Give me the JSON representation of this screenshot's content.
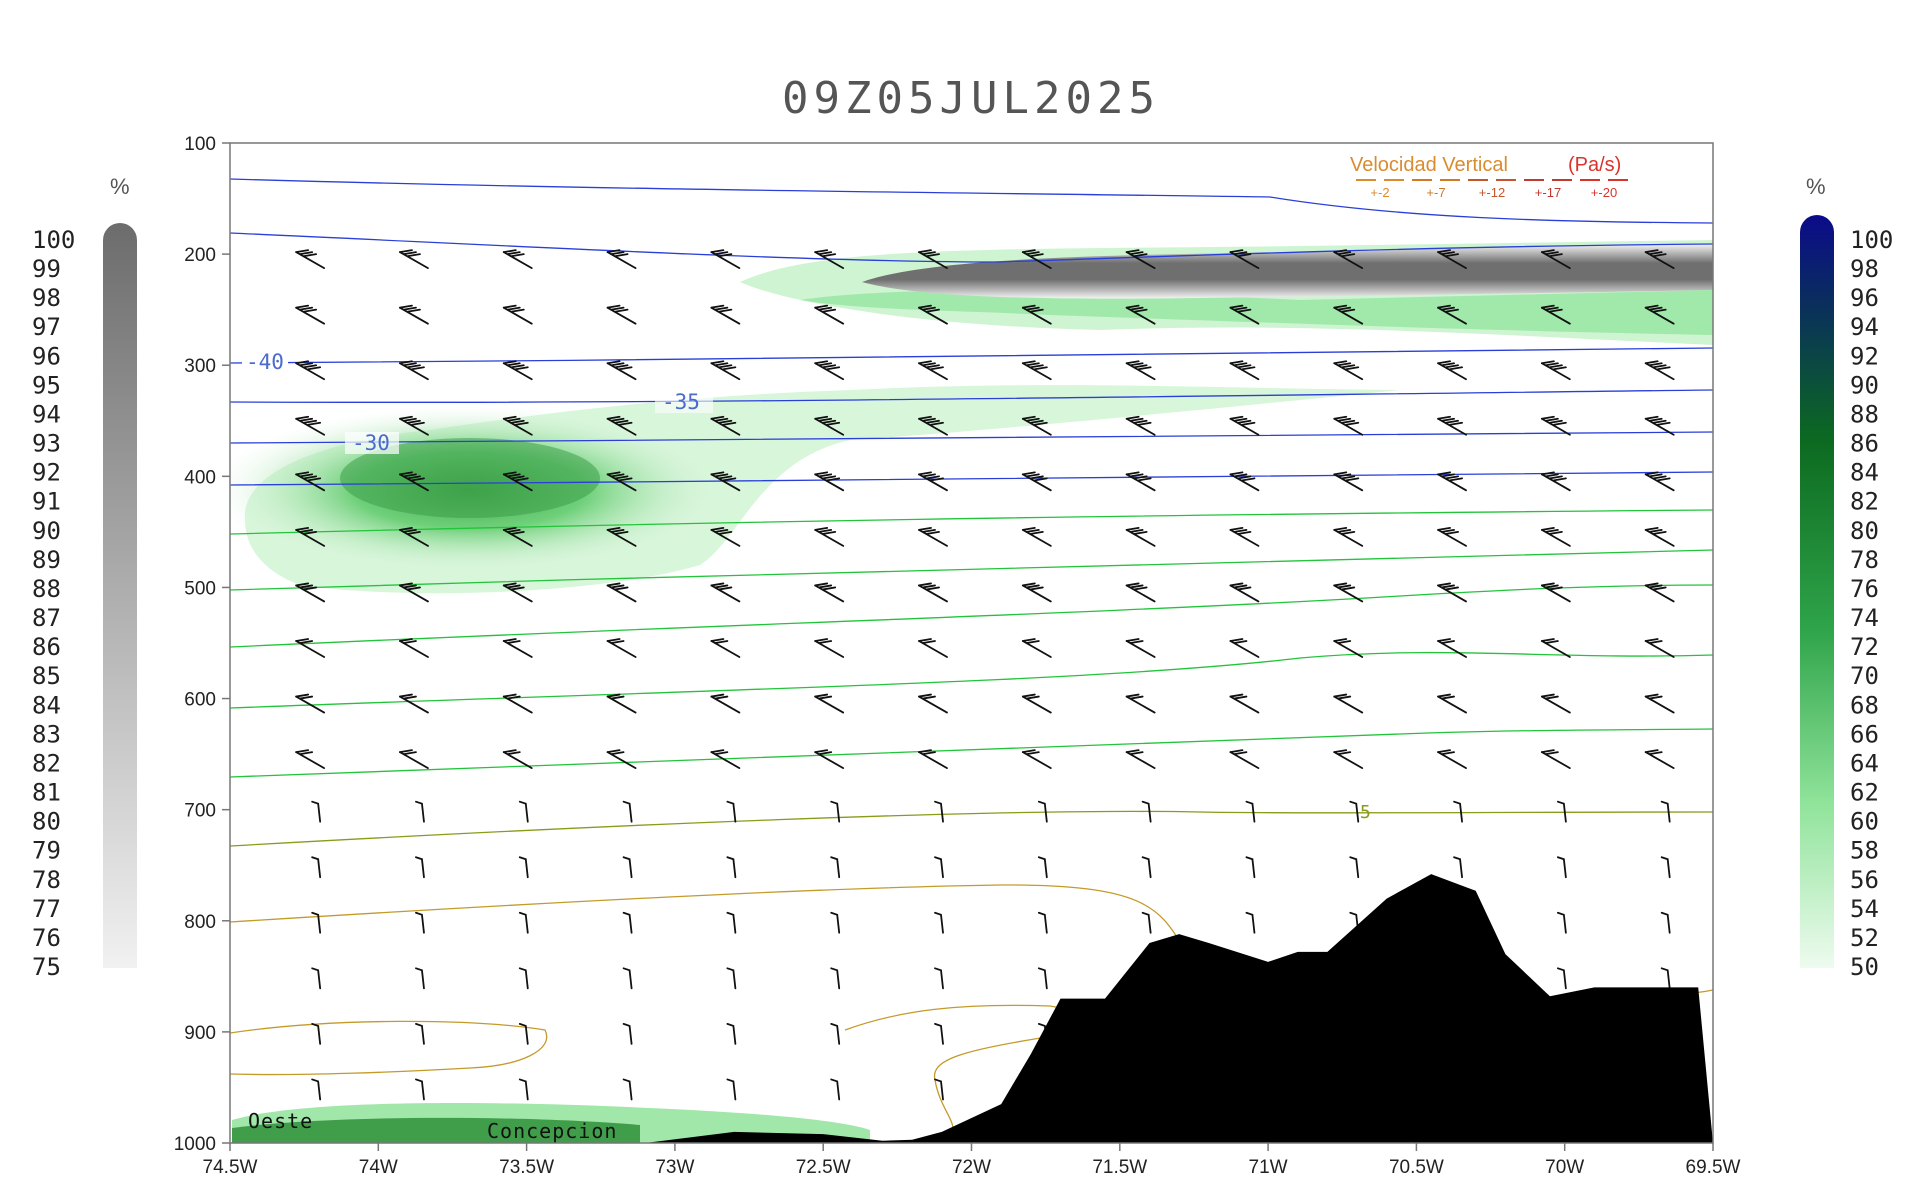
{
  "chart_data": {
    "type": "cross-section",
    "title": "09Z05JUL2025",
    "x_axis": {
      "ticks": [
        "74.5W",
        "74W",
        "73.5W",
        "73W",
        "72.5W",
        "72W",
        "71.5W",
        "71W",
        "70.5W",
        "70W",
        "69.5W"
      ],
      "range": [
        -74.5,
        -69.5
      ]
    },
    "y_axis": {
      "ticks": [
        "100",
        "200",
        "300",
        "400",
        "500",
        "600",
        "700",
        "800",
        "900",
        "1000"
      ],
      "range": [
        100,
        1000
      ]
    },
    "places": [
      "Oeste",
      "Concepcion"
    ],
    "temperature_contour_labels": [
      "-40",
      "-35",
      "-30",
      "5"
    ],
    "vertical_velocity_legend": {
      "title": "Velocidad Vertical",
      "units": "(Pa/s)",
      "values": [
        "+-2",
        "+-7",
        "+-12",
        "+-17",
        "+-20"
      ],
      "colors": [
        "#d98c2e",
        "#d07a26",
        "#c4552a",
        "#c03a30",
        "#d9342b"
      ]
    },
    "left_colorbar": {
      "unit_label": "%",
      "labels": [
        "100",
        "99",
        "98",
        "97",
        "96",
        "95",
        "94",
        "93",
        "92",
        "91",
        "90",
        "89",
        "88",
        "87",
        "86",
        "85",
        "84",
        "83",
        "82",
        "81",
        "80",
        "79",
        "78",
        "77",
        "76",
        "75"
      ]
    },
    "right_colorbar": {
      "unit_label": "%",
      "labels": [
        "100",
        "98",
        "96",
        "94",
        "92",
        "90",
        "88",
        "86",
        "84",
        "82",
        "80",
        "78",
        "76",
        "74",
        "72",
        "70",
        "68",
        "66",
        "64",
        "62",
        "60",
        "58",
        "56",
        "54",
        "52",
        "50"
      ]
    },
    "terrain_profile": {
      "lon": [
        -74.5,
        -73.1,
        -72.8,
        -72.5,
        -72.3,
        -72.2,
        -72.1,
        -71.9,
        -71.8,
        -71.7,
        -71.55,
        -71.4,
        -71.3,
        -71.2,
        -71.0,
        -70.9,
        -70.8,
        -70.6,
        -70.45,
        -70.3,
        -70.2,
        -70.05,
        -69.9,
        -69.75,
        -69.55,
        -69.5
      ],
      "p": [
        1000,
        1000,
        990,
        992,
        998,
        997,
        990,
        965,
        920,
        870,
        870,
        820,
        812,
        820,
        837,
        828,
        828,
        780,
        758,
        773,
        830,
        868,
        860,
        860,
        860,
        1000
      ]
    },
    "colors": {
      "axis": "#555555",
      "blue_contour": "#2a3fd8",
      "green_contour": "#22c43a",
      "olive_contour": "#8a8a1a",
      "tan_contour": "#c49a2a",
      "terrain": "#000000"
    }
  }
}
